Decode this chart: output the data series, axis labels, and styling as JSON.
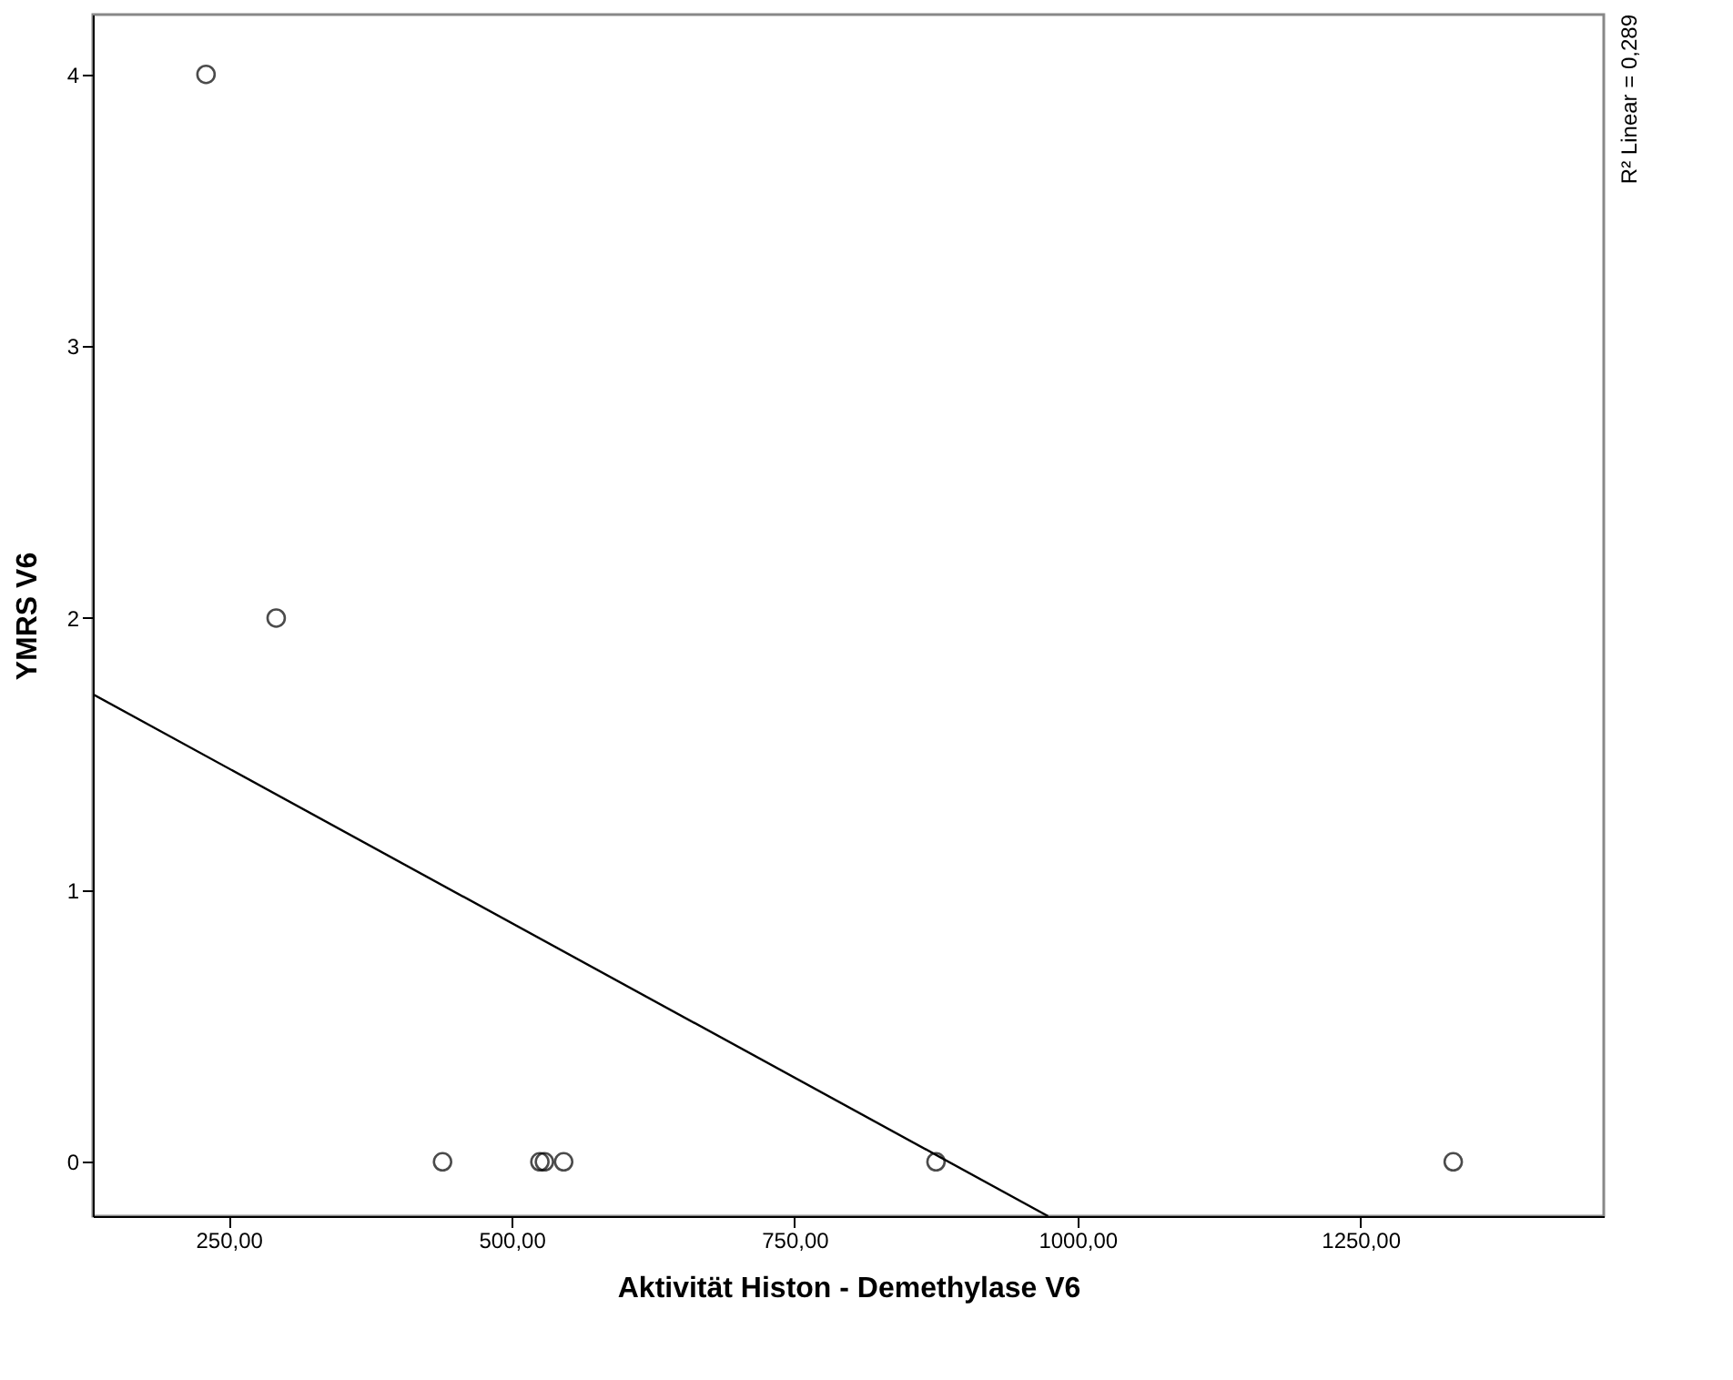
{
  "chart_data": {
    "type": "scatter",
    "xlabel": "Aktivität Histon - Demethylase V6",
    "ylabel": "YMRS V6",
    "xlim": [
      130,
      1465
    ],
    "ylim": [
      -0.2,
      4.22
    ],
    "xticks": [
      {
        "value": 250,
        "label": "250,00"
      },
      {
        "value": 500,
        "label": "500,00"
      },
      {
        "value": 750,
        "label": "750,00"
      },
      {
        "value": 1000,
        "label": "1000,00"
      },
      {
        "value": 1250,
        "label": "1250,00"
      }
    ],
    "yticks": [
      0,
      1,
      2,
      3,
      4
    ],
    "grid": false,
    "series": [
      {
        "marker": "circle",
        "color": "#000000",
        "x": [
          230,
          292,
          439,
          525,
          529,
          546,
          875,
          1332
        ],
        "values": [
          4,
          2,
          0,
          0,
          0,
          0,
          0,
          0
        ]
      },
      {
        "type": "line",
        "marker": "none",
        "color": "#000000",
        "line_style": "solid",
        "x": [
          130,
          974
        ],
        "values": [
          1.72,
          -0.2
        ]
      }
    ],
    "annotations": [
      "R² Linear = 0,289"
    ]
  }
}
